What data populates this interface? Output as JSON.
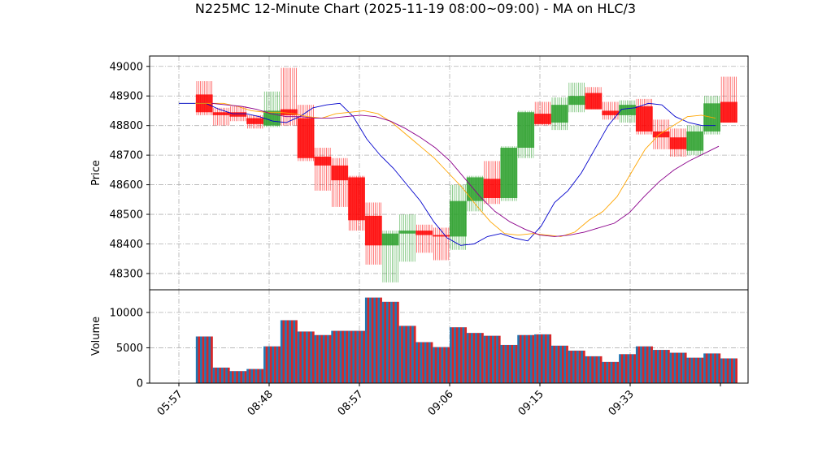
{
  "chart_data": {
    "type": "candlestick",
    "title": "N225MC 12-Minute Chart (2025-11-19 08:00~09:00) - MA on HLC/3",
    "price_panel": {
      "ylabel": "Price",
      "yticks": [
        48300,
        48400,
        48500,
        48600,
        48700,
        48800,
        48900,
        49000
      ],
      "ylim": [
        48245,
        49035
      ]
    },
    "volume_panel": {
      "ylabel": "Volume",
      "yticks": [
        0,
        5000,
        10000
      ],
      "ylim": [
        0,
        13200
      ]
    },
    "xticks": [
      "05:57",
      "08:48",
      "08:57",
      "09:06",
      "09:15",
      "09:33"
    ],
    "grid": true,
    "colors": {
      "up": "#2ca02c",
      "down": "#ff0000",
      "ma_short": "#0000cc",
      "ma_mid": "#ffa500",
      "ma_long": "#8b008b",
      "volume_a": "#1f77b4",
      "volume_b": "#d62728"
    },
    "candles": [
      {
        "o": 48875,
        "h": 48875,
        "l": 48875,
        "c": 48875,
        "v": 0
      },
      {
        "o": 48905,
        "h": 48950,
        "l": 48835,
        "c": 48845,
        "v": 6600
      },
      {
        "o": 48845,
        "h": 48860,
        "l": 48800,
        "c": 48835,
        "v": 2200
      },
      {
        "o": 48845,
        "h": 48865,
        "l": 48815,
        "c": 48830,
        "v": 1700
      },
      {
        "o": 48825,
        "h": 48835,
        "l": 48790,
        "c": 48805,
        "v": 2000
      },
      {
        "o": 48800,
        "h": 48915,
        "l": 48795,
        "c": 48850,
        "v": 5200
      },
      {
        "o": 48855,
        "h": 48995,
        "l": 48800,
        "c": 48835,
        "v": 8900
      },
      {
        "o": 48825,
        "h": 48870,
        "l": 48680,
        "c": 48690,
        "v": 7300
      },
      {
        "o": 48695,
        "h": 48725,
        "l": 48580,
        "c": 48665,
        "v": 6800
      },
      {
        "o": 48665,
        "h": 48690,
        "l": 48525,
        "c": 48615,
        "v": 7400
      },
      {
        "o": 48625,
        "h": 48630,
        "l": 48445,
        "c": 48480,
        "v": 7400
      },
      {
        "o": 48495,
        "h": 48540,
        "l": 48330,
        "c": 48395,
        "v": 12100
      },
      {
        "o": 48395,
        "h": 48445,
        "l": 48270,
        "c": 48435,
        "v": 11500
      },
      {
        "o": 48435,
        "h": 48500,
        "l": 48340,
        "c": 48445,
        "v": 8100
      },
      {
        "o": 48445,
        "h": 48465,
        "l": 48370,
        "c": 48430,
        "v": 5800
      },
      {
        "o": 48430,
        "h": 48455,
        "l": 48345,
        "c": 48425,
        "v": 5100
      },
      {
        "o": 48425,
        "h": 48600,
        "l": 48380,
        "c": 48545,
        "v": 7900
      },
      {
        "o": 48545,
        "h": 48630,
        "l": 48510,
        "c": 48625,
        "v": 7100
      },
      {
        "o": 48620,
        "h": 48680,
        "l": 48535,
        "c": 48555,
        "v": 6700
      },
      {
        "o": 48555,
        "h": 48730,
        "l": 48545,
        "c": 48725,
        "v": 5400
      },
      {
        "o": 48725,
        "h": 48850,
        "l": 48690,
        "c": 48845,
        "v": 6800
      },
      {
        "o": 48840,
        "h": 48880,
        "l": 48800,
        "c": 48805,
        "v": 6900
      },
      {
        "o": 48810,
        "h": 48895,
        "l": 48785,
        "c": 48870,
        "v": 5300
      },
      {
        "o": 48870,
        "h": 48945,
        "l": 48845,
        "c": 48900,
        "v": 4600
      },
      {
        "o": 48910,
        "h": 48930,
        "l": 48855,
        "c": 48855,
        "v": 3800
      },
      {
        "o": 48850,
        "h": 48880,
        "l": 48820,
        "c": 48835,
        "v": 3000
      },
      {
        "o": 48835,
        "h": 48885,
        "l": 48810,
        "c": 48870,
        "v": 4100
      },
      {
        "o": 48865,
        "h": 48890,
        "l": 48770,
        "c": 48780,
        "v": 5200
      },
      {
        "o": 48780,
        "h": 48820,
        "l": 48720,
        "c": 48760,
        "v": 4700
      },
      {
        "o": 48760,
        "h": 48790,
        "l": 48695,
        "c": 48720,
        "v": 4300
      },
      {
        "o": 48715,
        "h": 48800,
        "l": 48700,
        "c": 48780,
        "v": 3600
      },
      {
        "o": 48780,
        "h": 48900,
        "l": 48770,
        "c": 48875,
        "v": 4200
      },
      {
        "o": 48880,
        "h": 48965,
        "l": 48810,
        "c": 48810,
        "v": 3500
      }
    ],
    "moving_averages": [
      {
        "name": "short",
        "values": [
          48875,
          48875,
          48875,
          48855,
          48840,
          48840,
          48830,
          48815,
          48810,
          48830,
          48860,
          48870,
          48875,
          48830,
          48755,
          48700,
          48655,
          48600,
          48545,
          48475,
          48420,
          48395,
          48400,
          48425,
          48435,
          48420,
          48410,
          48460,
          48540,
          48580,
          48640,
          48720,
          48800,
          48855,
          48860,
          48875,
          48870,
          48830,
          48810,
          48800,
          48800
        ]
      },
      {
        "name": "mid",
        "values": [
          48875,
          48875,
          48875,
          48865,
          48850,
          48845,
          48845,
          48840,
          48830,
          48825,
          48840,
          48845,
          48850,
          48840,
          48810,
          48770,
          48730,
          48690,
          48640,
          48590,
          48530,
          48475,
          48435,
          48430,
          48435,
          48430,
          48425,
          48440,
          48480,
          48510,
          48560,
          48640,
          48720,
          48770,
          48800,
          48830,
          48835,
          48825
        ]
      },
      {
        "name": "long",
        "values": [
          48875,
          48870,
          48865,
          48855,
          48840,
          48830,
          48830,
          48825,
          48825,
          48830,
          48835,
          48830,
          48815,
          48790,
          48760,
          48725,
          48680,
          48620,
          48560,
          48510,
          48475,
          48450,
          48430,
          48425,
          48430,
          48440,
          48455,
          48470,
          48505,
          48560,
          48610,
          48650,
          48680,
          48705,
          48730
        ]
      }
    ]
  }
}
